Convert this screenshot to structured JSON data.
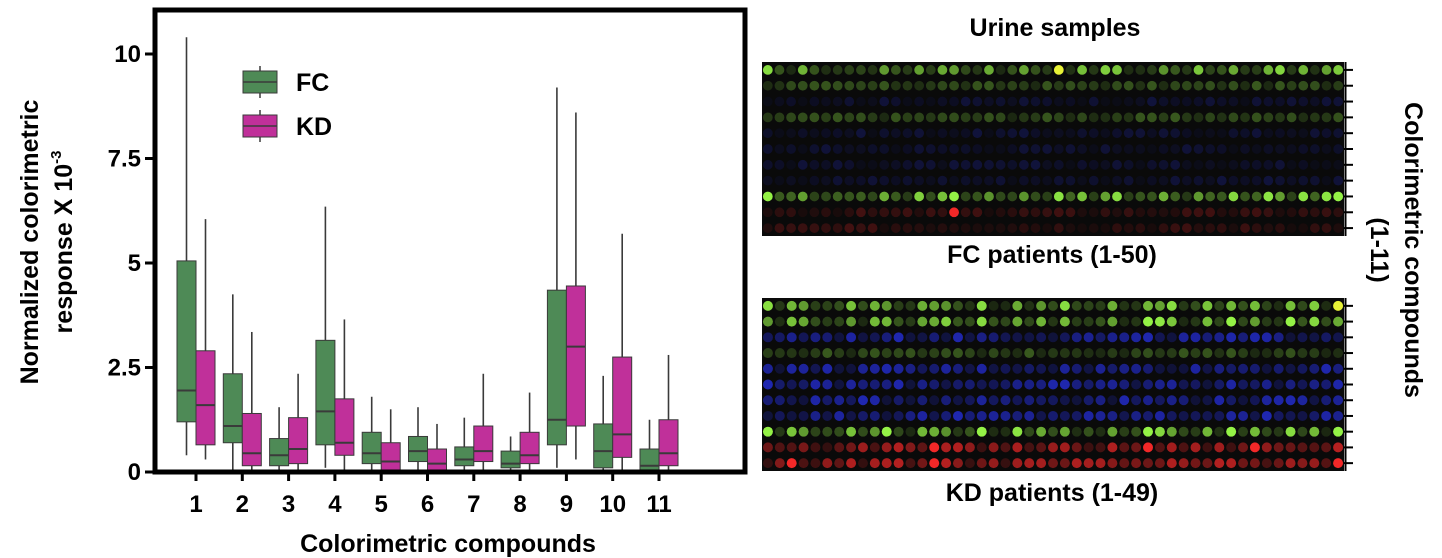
{
  "chart_data": [
    {
      "type": "box",
      "title": "",
      "xlabel": "Colorimetric compounds",
      "ylabel": "Normalized colorimetric",
      "ylabel_line2": "response X 10",
      "ylabel_exponent": "-3",
      "ylim": [
        0,
        11
      ],
      "yticks": [
        0,
        2.5,
        5,
        7.5,
        10
      ],
      "ytick_labels": [
        "0",
        "2.5",
        "5",
        "7.5",
        "10"
      ],
      "categories": [
        "1",
        "2",
        "3",
        "4",
        "5",
        "6",
        "7",
        "8",
        "9",
        "10",
        "11"
      ],
      "legend_position": "top-left",
      "grid": false,
      "series": [
        {
          "name": "FC",
          "color": "#4e8a56",
          "boxes": [
            {
              "min": 0.4,
              "q1": 1.2,
              "median": 1.95,
              "q3": 5.05,
              "max": 10.4
            },
            {
              "min": 0.0,
              "q1": 0.7,
              "median": 1.1,
              "q3": 2.35,
              "max": 4.25
            },
            {
              "min": 0.0,
              "q1": 0.15,
              "median": 0.4,
              "q3": 0.8,
              "max": 1.55
            },
            {
              "min": 0.1,
              "q1": 0.65,
              "median": 1.45,
              "q3": 3.15,
              "max": 6.35
            },
            {
              "min": 0.0,
              "q1": 0.2,
              "median": 0.45,
              "q3": 0.95,
              "max": 1.8
            },
            {
              "min": 0.0,
              "q1": 0.25,
              "median": 0.5,
              "q3": 0.85,
              "max": 1.55
            },
            {
              "min": 0.0,
              "q1": 0.15,
              "median": 0.3,
              "q3": 0.6,
              "max": 1.3
            },
            {
              "min": 0.0,
              "q1": 0.1,
              "median": 0.2,
              "q3": 0.5,
              "max": 0.85
            },
            {
              "min": 0.1,
              "q1": 0.65,
              "median": 1.25,
              "q3": 4.35,
              "max": 9.2
            },
            {
              "min": 0.0,
              "q1": 0.1,
              "median": 0.5,
              "q3": 1.15,
              "max": 2.3
            },
            {
              "min": 0.0,
              "q1": 0.05,
              "median": 0.15,
              "q3": 0.55,
              "max": 1.25
            }
          ]
        },
        {
          "name": "KD",
          "color": "#c0309a",
          "boxes": [
            {
              "min": 0.3,
              "q1": 0.65,
              "median": 1.6,
              "q3": 2.9,
              "max": 6.05
            },
            {
              "min": 0.0,
              "q1": 0.15,
              "median": 0.45,
              "q3": 1.4,
              "max": 3.35
            },
            {
              "min": 0.0,
              "q1": 0.2,
              "median": 0.55,
              "q3": 1.3,
              "max": 2.35
            },
            {
              "min": 0.0,
              "q1": 0.4,
              "median": 0.7,
              "q3": 1.75,
              "max": 3.65
            },
            {
              "min": 0.0,
              "q1": 0.0,
              "median": 0.25,
              "q3": 0.7,
              "max": 1.5
            },
            {
              "min": 0.0,
              "q1": 0.0,
              "median": 0.2,
              "q3": 0.55,
              "max": 1.15
            },
            {
              "min": 0.0,
              "q1": 0.25,
              "median": 0.5,
              "q3": 1.1,
              "max": 2.35
            },
            {
              "min": 0.0,
              "q1": 0.2,
              "median": 0.4,
              "q3": 0.95,
              "max": 1.9
            },
            {
              "min": 0.3,
              "q1": 1.1,
              "median": 3.0,
              "q3": 4.45,
              "max": 8.6
            },
            {
              "min": 0.0,
              "q1": 0.35,
              "median": 0.9,
              "q3": 2.75,
              "max": 5.7
            },
            {
              "min": 0.0,
              "q1": 0.15,
              "median": 0.45,
              "q3": 1.25,
              "max": 2.8
            }
          ]
        }
      ]
    },
    {
      "type": "heatmap",
      "section_title": "Urine samples",
      "side_title_line1": "Colorimetric compounds",
      "side_title_line2": "(1-11)",
      "channel_colors": {
        "green": "#9cff4a",
        "blue": "#2a35ff",
        "red": "#ff2a2a",
        "yellow": "#f4ff3a"
      },
      "panels": [
        {
          "label": "FC patients (1-50)",
          "columns": 50,
          "rows": 11,
          "bright_green_columns": [
            1,
            4,
            11,
            14,
            16,
            17,
            20,
            23,
            26,
            28,
            30,
            31,
            35,
            38,
            41,
            44,
            45,
            47,
            49,
            50
          ],
          "hot_cells": [
            [
              1,
              26,
              "yellow"
            ],
            [
              9,
              1,
              "green"
            ],
            [
              9,
              17,
              "green"
            ],
            [
              9,
              50,
              "green"
            ],
            [
              10,
              17,
              "red"
            ]
          ]
        },
        {
          "label": "KD patients (1-49)",
          "columns": 49,
          "rows": 11,
          "bright_green_columns": [
            1,
            3,
            4,
            8,
            10,
            11,
            14,
            15,
            16,
            19,
            22,
            24,
            26,
            30,
            33,
            34,
            35,
            38,
            40,
            42,
            45,
            47,
            49
          ],
          "hot_cells": [
            [
              1,
              49,
              "yellow"
            ],
            [
              2,
              33,
              "green"
            ],
            [
              2,
              40,
              "green"
            ],
            [
              2,
              45,
              "green"
            ],
            [
              9,
              1,
              "green"
            ],
            [
              9,
              11,
              "green"
            ],
            [
              9,
              19,
              "green"
            ],
            [
              9,
              33,
              "green"
            ],
            [
              9,
              40,
              "green"
            ],
            [
              9,
              49,
              "green"
            ],
            [
              10,
              15,
              "red"
            ],
            [
              10,
              33,
              "red"
            ],
            [
              10,
              42,
              "red"
            ],
            [
              11,
              3,
              "red"
            ],
            [
              11,
              15,
              "red"
            ],
            [
              11,
              49,
              "red"
            ]
          ]
        }
      ]
    }
  ]
}
